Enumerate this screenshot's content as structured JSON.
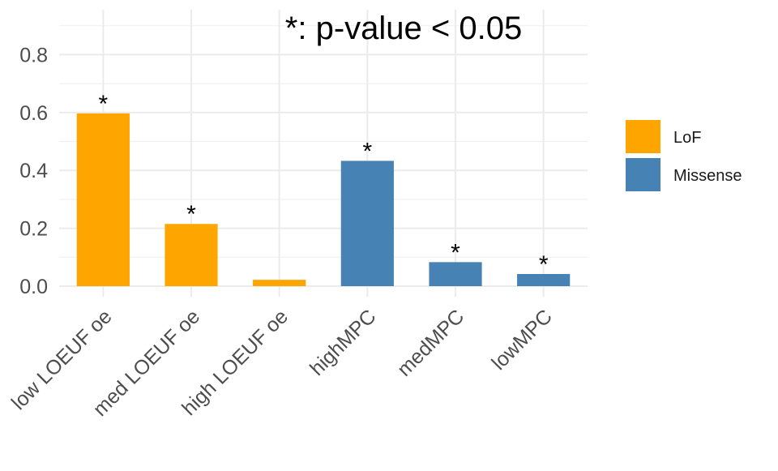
{
  "chart_data": {
    "type": "bar",
    "title": "",
    "annotation": "*: p-value < 0.05",
    "xlabel": "",
    "ylabel": "",
    "ylim": [
      0,
      0.92
    ],
    "yticks": [
      "0.0",
      "0.2",
      "0.4",
      "0.6",
      "0.8"
    ],
    "yticks_values": [
      0,
      0.2,
      0.4,
      0.6,
      0.8
    ],
    "grid": true,
    "legend_position": "right",
    "categories": [
      "low LOEUF oe",
      "med LOEUF oe",
      "high LOEUF oe",
      "highMPC",
      "medMPC",
      "lowMPC"
    ],
    "values": [
      0.597,
      0.215,
      0.022,
      0.433,
      0.083,
      0.042
    ],
    "groups": [
      "LoF",
      "LoF",
      "LoF",
      "Missense",
      "Missense",
      "Missense"
    ],
    "significant": [
      true,
      true,
      false,
      true,
      true,
      true
    ],
    "significance_marker": "*",
    "legend": [
      {
        "name": "LoF",
        "color": "#FFA500"
      },
      {
        "name": "Missense",
        "color": "#4682B4"
      }
    ]
  }
}
